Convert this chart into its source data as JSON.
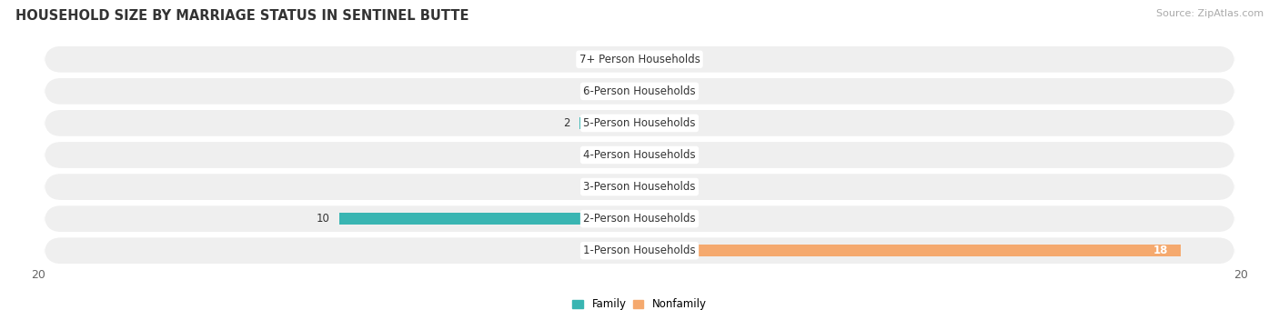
{
  "title": "HOUSEHOLD SIZE BY MARRIAGE STATUS IN SENTINEL BUTTE",
  "source": "Source: ZipAtlas.com",
  "categories": [
    "1-Person Households",
    "2-Person Households",
    "3-Person Households",
    "4-Person Households",
    "5-Person Households",
    "6-Person Households",
    "7+ Person Households"
  ],
  "family_values": [
    0,
    10,
    0,
    0,
    2,
    0,
    0
  ],
  "nonfamily_values": [
    18,
    0,
    0,
    0,
    0,
    0,
    0
  ],
  "family_color": "#39b5b2",
  "nonfamily_color": "#f5a96e",
  "family_color_light": "#a8dada",
  "nonfamily_color_light": "#f8c99a",
  "xlim": [
    -20,
    20
  ],
  "row_bg_color": "#efefef",
  "title_fontsize": 10.5,
  "label_fontsize": 8.5,
  "tick_fontsize": 9,
  "source_fontsize": 8,
  "stub_size": 1.2
}
